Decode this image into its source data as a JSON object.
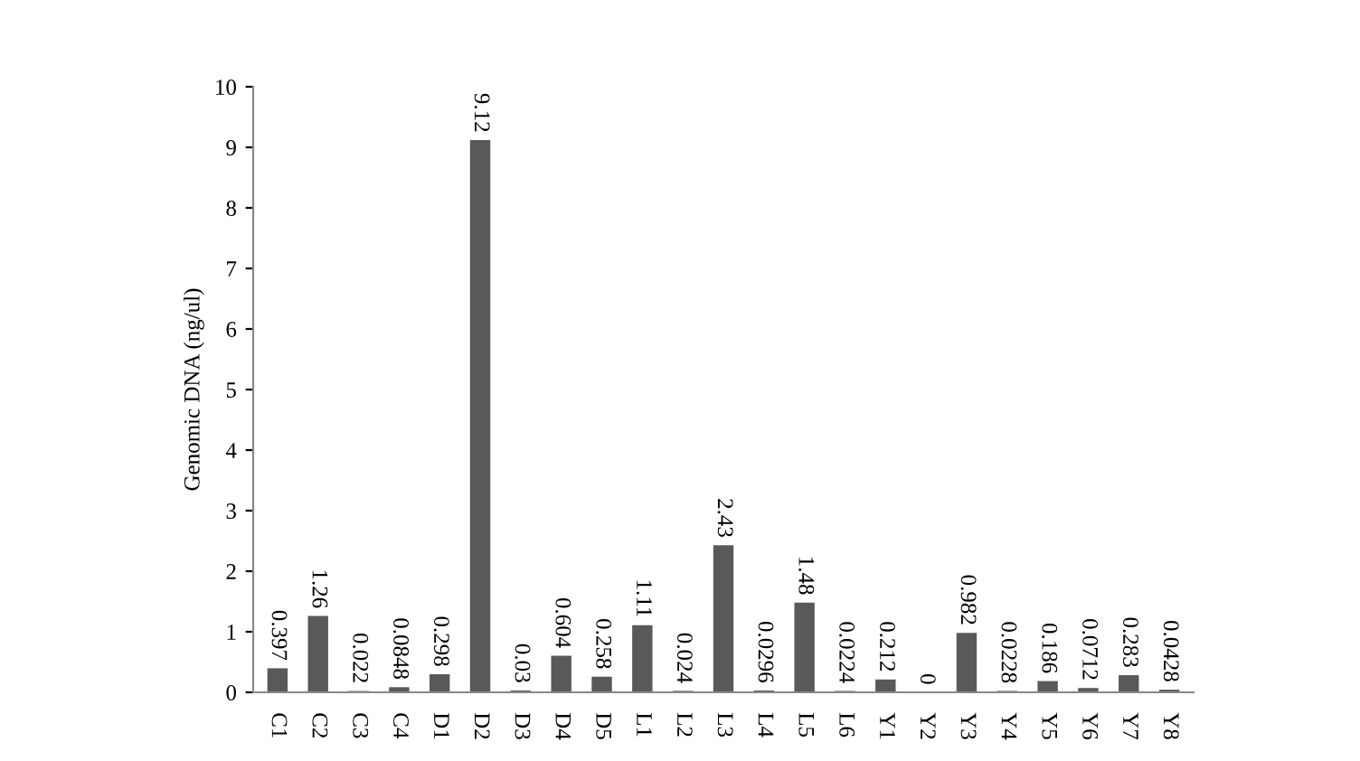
{
  "chart_data": {
    "type": "bar",
    "ylabel": "Genomic DNA (ng/ul)",
    "categories": [
      "C1",
      "C2",
      "C3",
      "C4",
      "D1",
      "D2",
      "D3",
      "D4",
      "D5",
      "L1",
      "L2",
      "L3",
      "L4",
      "L5",
      "L6",
      "Y1",
      "Y2",
      "Y3",
      "Y4",
      "Y5",
      "Y6",
      "Y7",
      "Y8"
    ],
    "values": [
      0.397,
      1.26,
      0.022,
      0.0848,
      0.298,
      9.12,
      0.03,
      0.604,
      0.258,
      1.11,
      0.024,
      2.43,
      0.0296,
      1.48,
      0.0224,
      0.212,
      0,
      0.982,
      0.0228,
      0.186,
      0.0712,
      0.283,
      0.0428
    ],
    "color": "#595959",
    "ylim": [
      0,
      10
    ],
    "yticks": [
      0,
      1,
      2,
      3,
      4,
      5,
      6,
      7,
      8,
      9,
      10
    ],
    "grid": false,
    "legend": false,
    "data_labels": true
  }
}
